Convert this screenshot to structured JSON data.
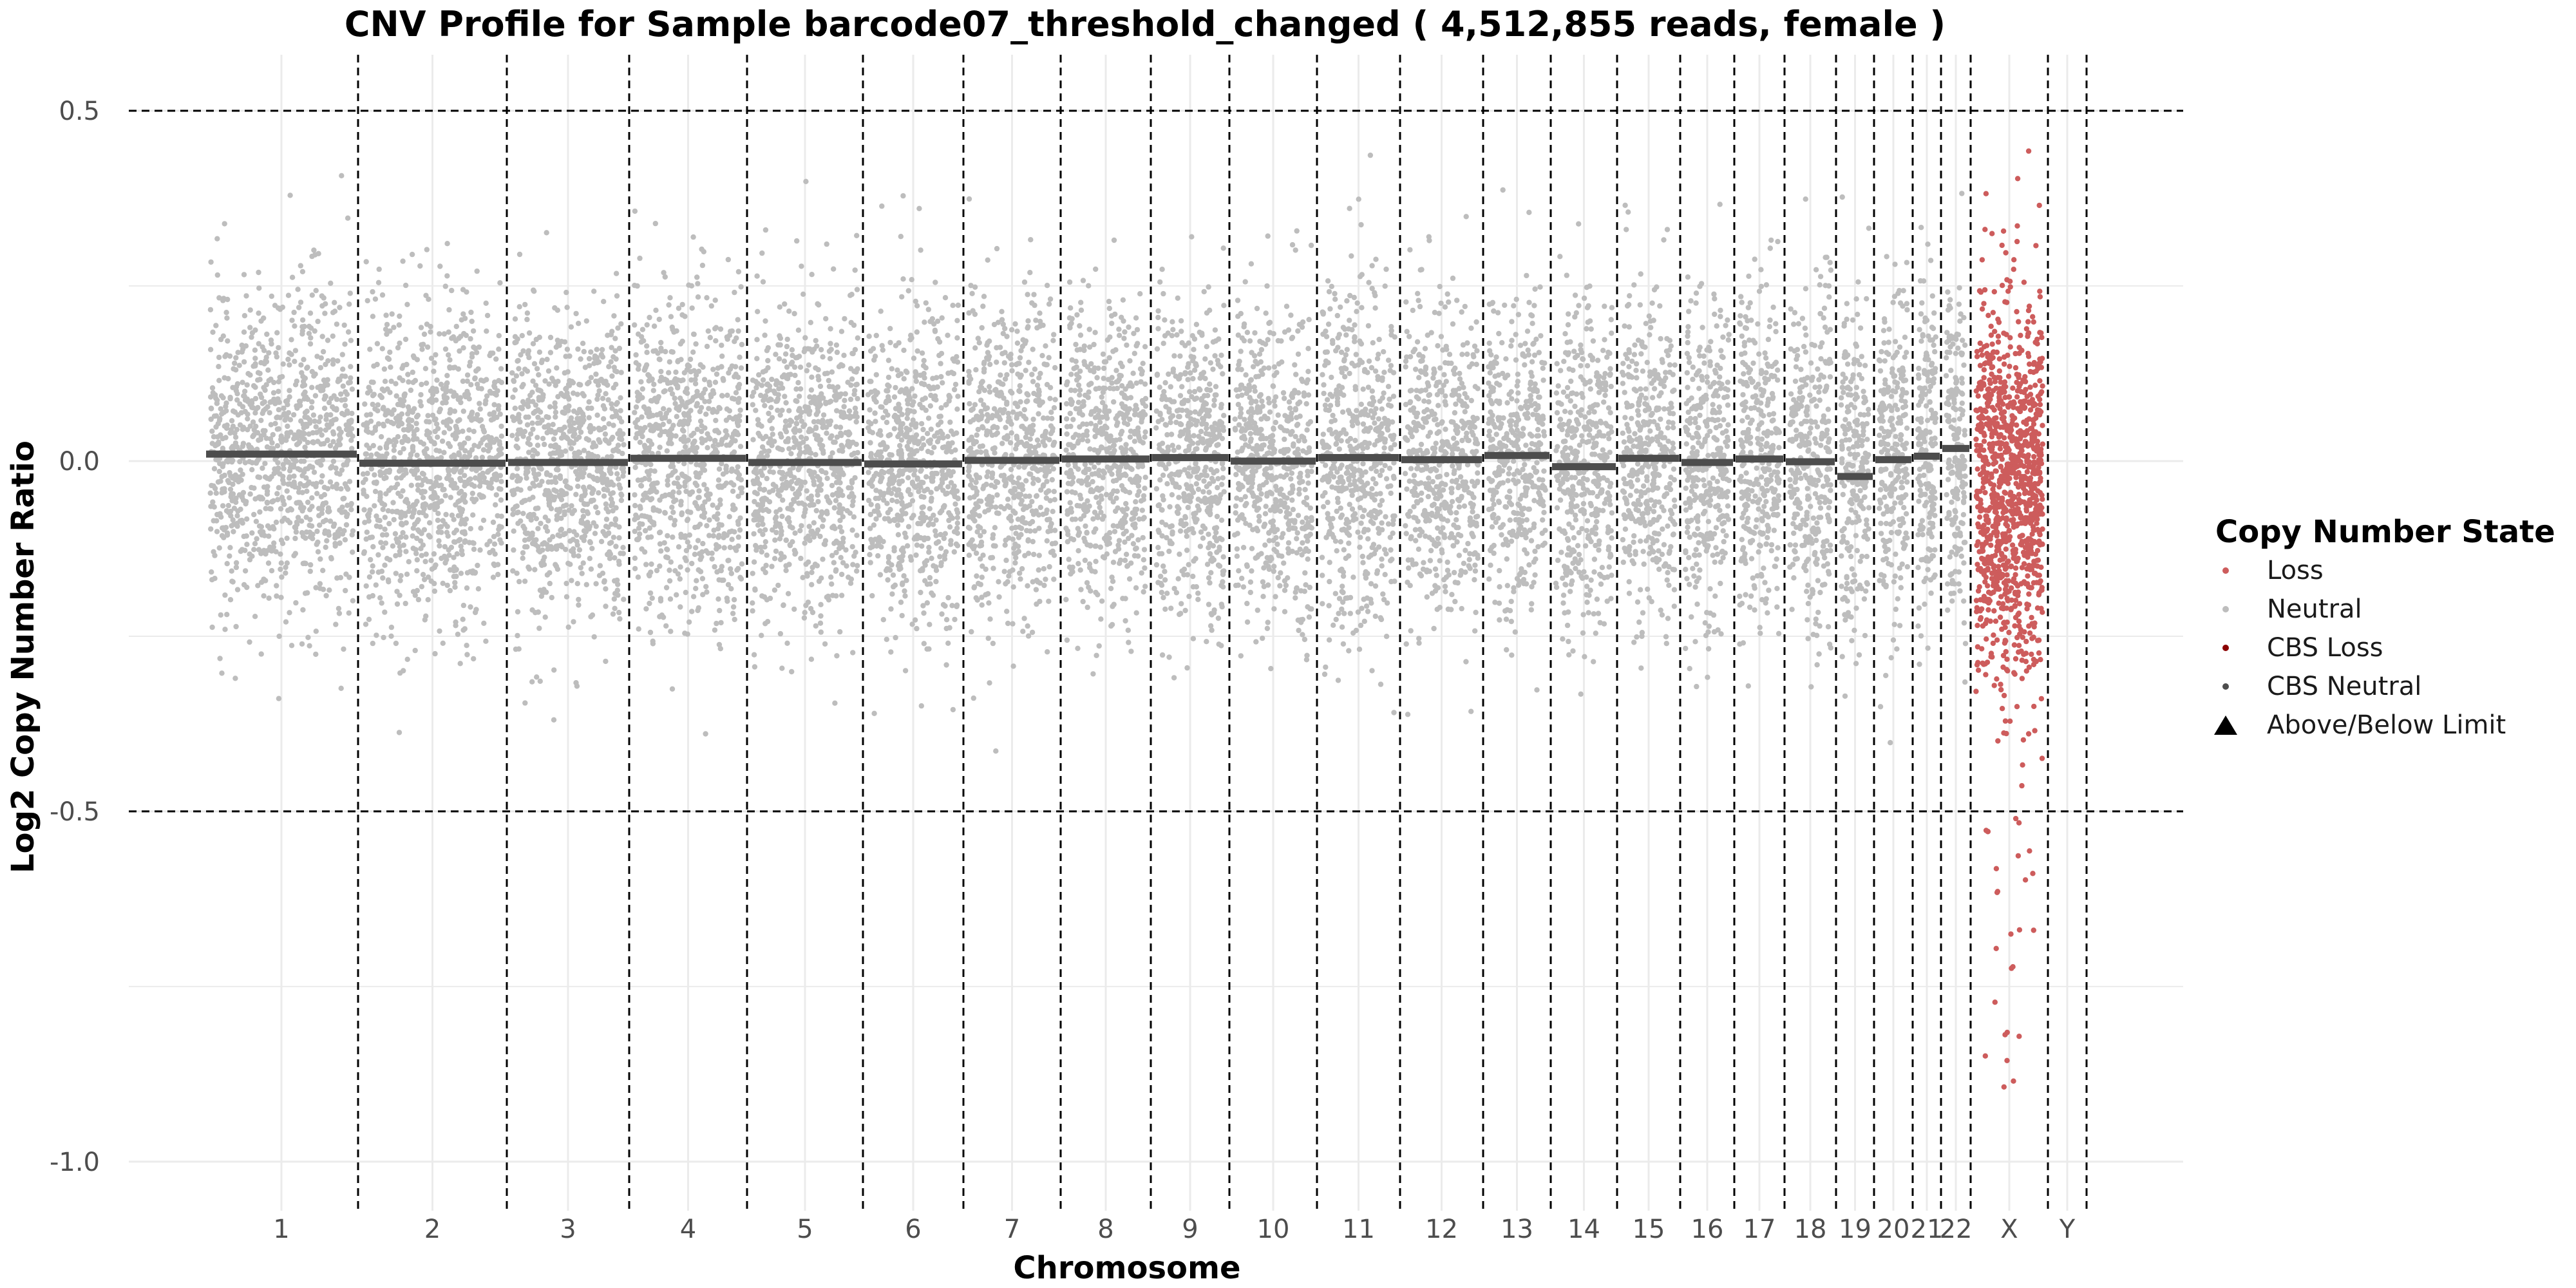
{
  "chart_data": {
    "type": "scatter",
    "title": "CNV Profile for Sample barcode07_threshold_changed ( 4,512,855 reads, female )",
    "xlabel": "Chromosome",
    "ylabel": "Log2 Copy Number Ratio",
    "ylim": [
      -1.07,
      0.58
    ],
    "y_ticks": [
      {
        "value": 0.5,
        "label": "0.5"
      },
      {
        "value": 0.0,
        "label": "0.0"
      },
      {
        "value": -0.5,
        "label": "-0.5"
      },
      {
        "value": -1.0,
        "label": "-1.0"
      }
    ],
    "threshold_lines": [
      0.5,
      -0.5
    ],
    "grid": true,
    "legend_position": "right",
    "legend": {
      "title": "Copy Number State",
      "entries": [
        {
          "label": "Loss",
          "shape": "dot",
          "color": "#cd5c5c"
        },
        {
          "label": "Neutral",
          "shape": "dot",
          "color": "#bdbdbd"
        },
        {
          "label": "CBS Loss",
          "shape": "dot",
          "color": "#8b0000"
        },
        {
          "label": "CBS Neutral",
          "shape": "dot",
          "color": "#4d4d4d"
        },
        {
          "label": "Above/Below Limit",
          "shape": "triangle",
          "color": "#000000"
        }
      ]
    },
    "chromosomes": [
      {
        "label": "1",
        "state": "Neutral",
        "cbs_segments": [
          0.01
        ]
      },
      {
        "label": "2",
        "state": "Neutral",
        "cbs_segments": [
          -0.003
        ]
      },
      {
        "label": "3",
        "state": "Neutral",
        "cbs_segments": [
          -0.002
        ]
      },
      {
        "label": "4",
        "state": "Neutral",
        "cbs_segments": [
          0.004
        ]
      },
      {
        "label": "5",
        "state": "Neutral",
        "cbs_segments": [
          -0.002
        ]
      },
      {
        "label": "6",
        "state": "Neutral",
        "cbs_segments": [
          -0.004
        ]
      },
      {
        "label": "7",
        "state": "Neutral",
        "cbs_segments": [
          0.001
        ]
      },
      {
        "label": "8",
        "state": "Neutral",
        "cbs_segments": [
          0.003
        ]
      },
      {
        "label": "9",
        "state": "Neutral",
        "cbs_segments": [
          0.005
        ]
      },
      {
        "label": "10",
        "state": "Neutral",
        "cbs_segments": [
          0.0
        ]
      },
      {
        "label": "11",
        "state": "Neutral",
        "cbs_segments": [
          0.005
        ]
      },
      {
        "label": "12",
        "state": "Neutral",
        "cbs_segments": [
          0.002
        ]
      },
      {
        "label": "13",
        "state": "Neutral",
        "cbs_segments": [
          0.008
        ]
      },
      {
        "label": "14",
        "state": "Neutral",
        "cbs_segments": [
          -0.008
        ]
      },
      {
        "label": "15",
        "state": "Neutral",
        "cbs_segments": [
          0.004
        ]
      },
      {
        "label": "16",
        "state": "Neutral",
        "cbs_segments": [
          -0.002
        ]
      },
      {
        "label": "17",
        "state": "Neutral",
        "cbs_segments": [
          0.003
        ]
      },
      {
        "label": "18",
        "state": "Neutral",
        "cbs_segments": [
          -0.001
        ]
      },
      {
        "label": "19",
        "state": "Neutral",
        "cbs_segments": [
          -0.022
        ]
      },
      {
        "label": "20",
        "state": "Neutral",
        "cbs_segments": [
          0.002
        ]
      },
      {
        "label": "21",
        "state": "Neutral",
        "cbs_segments": [
          0.007
        ]
      },
      {
        "label": "22",
        "state": "Neutral",
        "cbs_segments": [
          0.018
        ]
      },
      {
        "label": "X",
        "state": "Loss",
        "cbs_segments": [
          -0.04
        ]
      },
      {
        "label": "Y",
        "state": "Loss",
        "cbs_segments": []
      }
    ]
  },
  "colors": {
    "loss": "#cd5c5c",
    "neutral": "#bdbdbd",
    "cbs_loss": "#8b0000",
    "cbs_neutral": "#4d4d4d",
    "grid": "#ebebeb",
    "separator": "#000000"
  }
}
